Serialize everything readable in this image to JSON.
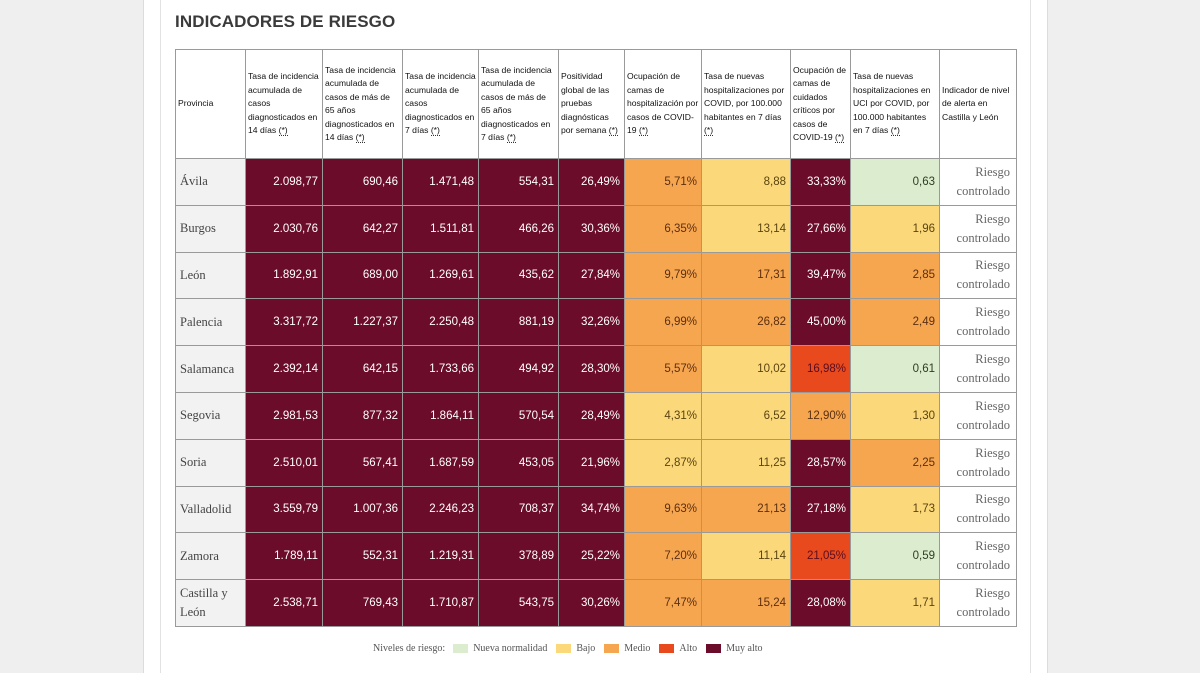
{
  "title": "INDICADORES DE RIESGO",
  "headers": [
    {
      "text": "Provincia",
      "ast": ""
    },
    {
      "text": "Tasa de incidencia acumulada de casos diagnosticados en 14 días ",
      "ast": "(*)"
    },
    {
      "text": "Tasa de incidencia acumulada de casos de más de 65 años diagnosticados en 14 días ",
      "ast": "(*)"
    },
    {
      "text": "Tasa de incidencia acumulada de casos diagnosticados en 7 días ",
      "ast": "(*)"
    },
    {
      "text": "Tasa de incidencia acumulada de casos de más de 65 años diagnosticados en 7 días ",
      "ast": "(*)"
    },
    {
      "text": "Positividad global de las pruebas diagnósticas por semana ",
      "ast": "(*)"
    },
    {
      "text": "Ocupación de camas de hospitalización por casos de COVID-19 ",
      "ast": "(*)"
    },
    {
      "text": "Tasa de nuevas hospitalizaciones por COVID, por 100.000 habitantes en 7 días ",
      "ast": "(*)"
    },
    {
      "text": "Ocupación de camas de cuidados críticos por casos de COVID-19 ",
      "ast": "(*)"
    },
    {
      "text": "Tasa de nuevas hospitalizaciones en UCI por COVID, por 100.000 habitantes en 7 días ",
      "ast": "(*)"
    },
    {
      "text": "Indicador de nivel de alerta en Castilla y León",
      "ast": ""
    }
  ],
  "rows": [
    {
      "province": "Ávila",
      "alert": "Riesgo controlado",
      "cells": [
        {
          "v": "2.098,77",
          "l": "muyalto"
        },
        {
          "v": "690,46",
          "l": "muyalto"
        },
        {
          "v": "1.471,48",
          "l": "muyalto"
        },
        {
          "v": "554,31",
          "l": "muyalto"
        },
        {
          "v": "26,49%",
          "l": "muyalto"
        },
        {
          "v": "5,71%",
          "l": "medio"
        },
        {
          "v": "8,88",
          "l": "bajo"
        },
        {
          "v": "33,33%",
          "l": "muyalto"
        },
        {
          "v": "0,63",
          "l": "nueva"
        }
      ]
    },
    {
      "province": "Burgos",
      "alert": "Riesgo controlado",
      "cells": [
        {
          "v": "2.030,76",
          "l": "muyalto"
        },
        {
          "v": "642,27",
          "l": "muyalto"
        },
        {
          "v": "1.511,81",
          "l": "muyalto"
        },
        {
          "v": "466,26",
          "l": "muyalto"
        },
        {
          "v": "30,36%",
          "l": "muyalto"
        },
        {
          "v": "6,35%",
          "l": "medio"
        },
        {
          "v": "13,14",
          "l": "bajo"
        },
        {
          "v": "27,66%",
          "l": "muyalto"
        },
        {
          "v": "1,96",
          "l": "bajo"
        }
      ]
    },
    {
      "province": "León",
      "alert": "Riesgo controlado",
      "cells": [
        {
          "v": "1.892,91",
          "l": "muyalto"
        },
        {
          "v": "689,00",
          "l": "muyalto"
        },
        {
          "v": "1.269,61",
          "l": "muyalto"
        },
        {
          "v": "435,62",
          "l": "muyalto"
        },
        {
          "v": "27,84%",
          "l": "muyalto"
        },
        {
          "v": "9,79%",
          "l": "medio"
        },
        {
          "v": "17,31",
          "l": "medio"
        },
        {
          "v": "39,47%",
          "l": "muyalto"
        },
        {
          "v": "2,85",
          "l": "medio"
        }
      ]
    },
    {
      "province": "Palencia",
      "alert": "Riesgo controlado",
      "cells": [
        {
          "v": "3.317,72",
          "l": "muyalto"
        },
        {
          "v": "1.227,37",
          "l": "muyalto"
        },
        {
          "v": "2.250,48",
          "l": "muyalto"
        },
        {
          "v": "881,19",
          "l": "muyalto"
        },
        {
          "v": "32,26%",
          "l": "muyalto"
        },
        {
          "v": "6,99%",
          "l": "medio"
        },
        {
          "v": "26,82",
          "l": "medio"
        },
        {
          "v": "45,00%",
          "l": "muyalto"
        },
        {
          "v": "2,49",
          "l": "medio"
        }
      ]
    },
    {
      "province": "Salamanca",
      "alert": "Riesgo controlado",
      "cells": [
        {
          "v": "2.392,14",
          "l": "muyalto"
        },
        {
          "v": "642,15",
          "l": "muyalto"
        },
        {
          "v": "1.733,66",
          "l": "muyalto"
        },
        {
          "v": "494,92",
          "l": "muyalto"
        },
        {
          "v": "28,30%",
          "l": "muyalto"
        },
        {
          "v": "5,57%",
          "l": "medio"
        },
        {
          "v": "10,02",
          "l": "bajo"
        },
        {
          "v": "16,98%",
          "l": "alto"
        },
        {
          "v": "0,61",
          "l": "nueva"
        }
      ]
    },
    {
      "province": "Segovia",
      "alert": "Riesgo controlado",
      "cells": [
        {
          "v": "2.981,53",
          "l": "muyalto"
        },
        {
          "v": "877,32",
          "l": "muyalto"
        },
        {
          "v": "1.864,11",
          "l": "muyalto"
        },
        {
          "v": "570,54",
          "l": "muyalto"
        },
        {
          "v": "28,49%",
          "l": "muyalto"
        },
        {
          "v": "4,31%",
          "l": "bajo"
        },
        {
          "v": "6,52",
          "l": "bajo"
        },
        {
          "v": "12,90%",
          "l": "medio"
        },
        {
          "v": "1,30",
          "l": "bajo"
        }
      ]
    },
    {
      "province": "Soria",
      "alert": "Riesgo controlado",
      "cells": [
        {
          "v": "2.510,01",
          "l": "muyalto"
        },
        {
          "v": "567,41",
          "l": "muyalto"
        },
        {
          "v": "1.687,59",
          "l": "muyalto"
        },
        {
          "v": "453,05",
          "l": "muyalto"
        },
        {
          "v": "21,96%",
          "l": "muyalto"
        },
        {
          "v": "2,87%",
          "l": "bajo"
        },
        {
          "v": "11,25",
          "l": "bajo"
        },
        {
          "v": "28,57%",
          "l": "muyalto"
        },
        {
          "v": "2,25",
          "l": "medio"
        }
      ]
    },
    {
      "province": "Valladolid",
      "alert": "Riesgo controlado",
      "cells": [
        {
          "v": "3.559,79",
          "l": "muyalto"
        },
        {
          "v": "1.007,36",
          "l": "muyalto"
        },
        {
          "v": "2.246,23",
          "l": "muyalto"
        },
        {
          "v": "708,37",
          "l": "muyalto"
        },
        {
          "v": "34,74%",
          "l": "muyalto"
        },
        {
          "v": "9,63%",
          "l": "medio"
        },
        {
          "v": "21,13",
          "l": "medio"
        },
        {
          "v": "27,18%",
          "l": "muyalto"
        },
        {
          "v": "1,73",
          "l": "bajo"
        }
      ]
    },
    {
      "province": "Zamora",
      "alert": "Riesgo controlado",
      "cells": [
        {
          "v": "1.789,11",
          "l": "muyalto"
        },
        {
          "v": "552,31",
          "l": "muyalto"
        },
        {
          "v": "1.219,31",
          "l": "muyalto"
        },
        {
          "v": "378,89",
          "l": "muyalto"
        },
        {
          "v": "25,22%",
          "l": "muyalto"
        },
        {
          "v": "7,20%",
          "l": "medio"
        },
        {
          "v": "11,14",
          "l": "bajo"
        },
        {
          "v": "21,05%",
          "l": "alto"
        },
        {
          "v": "0,59",
          "l": "nueva"
        }
      ]
    },
    {
      "province": "Castilla y León",
      "alert": "Riesgo controlado",
      "cells": [
        {
          "v": "2.538,71",
          "l": "muyalto"
        },
        {
          "v": "769,43",
          "l": "muyalto"
        },
        {
          "v": "1.710,87",
          "l": "muyalto"
        },
        {
          "v": "543,75",
          "l": "muyalto"
        },
        {
          "v": "30,26%",
          "l": "muyalto"
        },
        {
          "v": "7,47%",
          "l": "medio"
        },
        {
          "v": "15,24",
          "l": "medio"
        },
        {
          "v": "28,08%",
          "l": "muyalto"
        },
        {
          "v": "1,71",
          "l": "bajo"
        }
      ]
    }
  ],
  "legend": {
    "title": "Niveles de riesgo:",
    "items": [
      {
        "label": "Nueva normalidad",
        "color": "#dcedcf"
      },
      {
        "label": "Bajo",
        "color": "#fbd97a"
      },
      {
        "label": "Medio",
        "color": "#f7a650"
      },
      {
        "label": "Alto",
        "color": "#e84a1e"
      },
      {
        "label": "Muy alto",
        "color": "#6b0d2a"
      }
    ]
  },
  "colors": {
    "muyalto": "#6b0d2a",
    "alto": "#e84a1e",
    "medio": "#f7a650",
    "bajo": "#fbd97a",
    "nueva": "#dcedcf"
  }
}
